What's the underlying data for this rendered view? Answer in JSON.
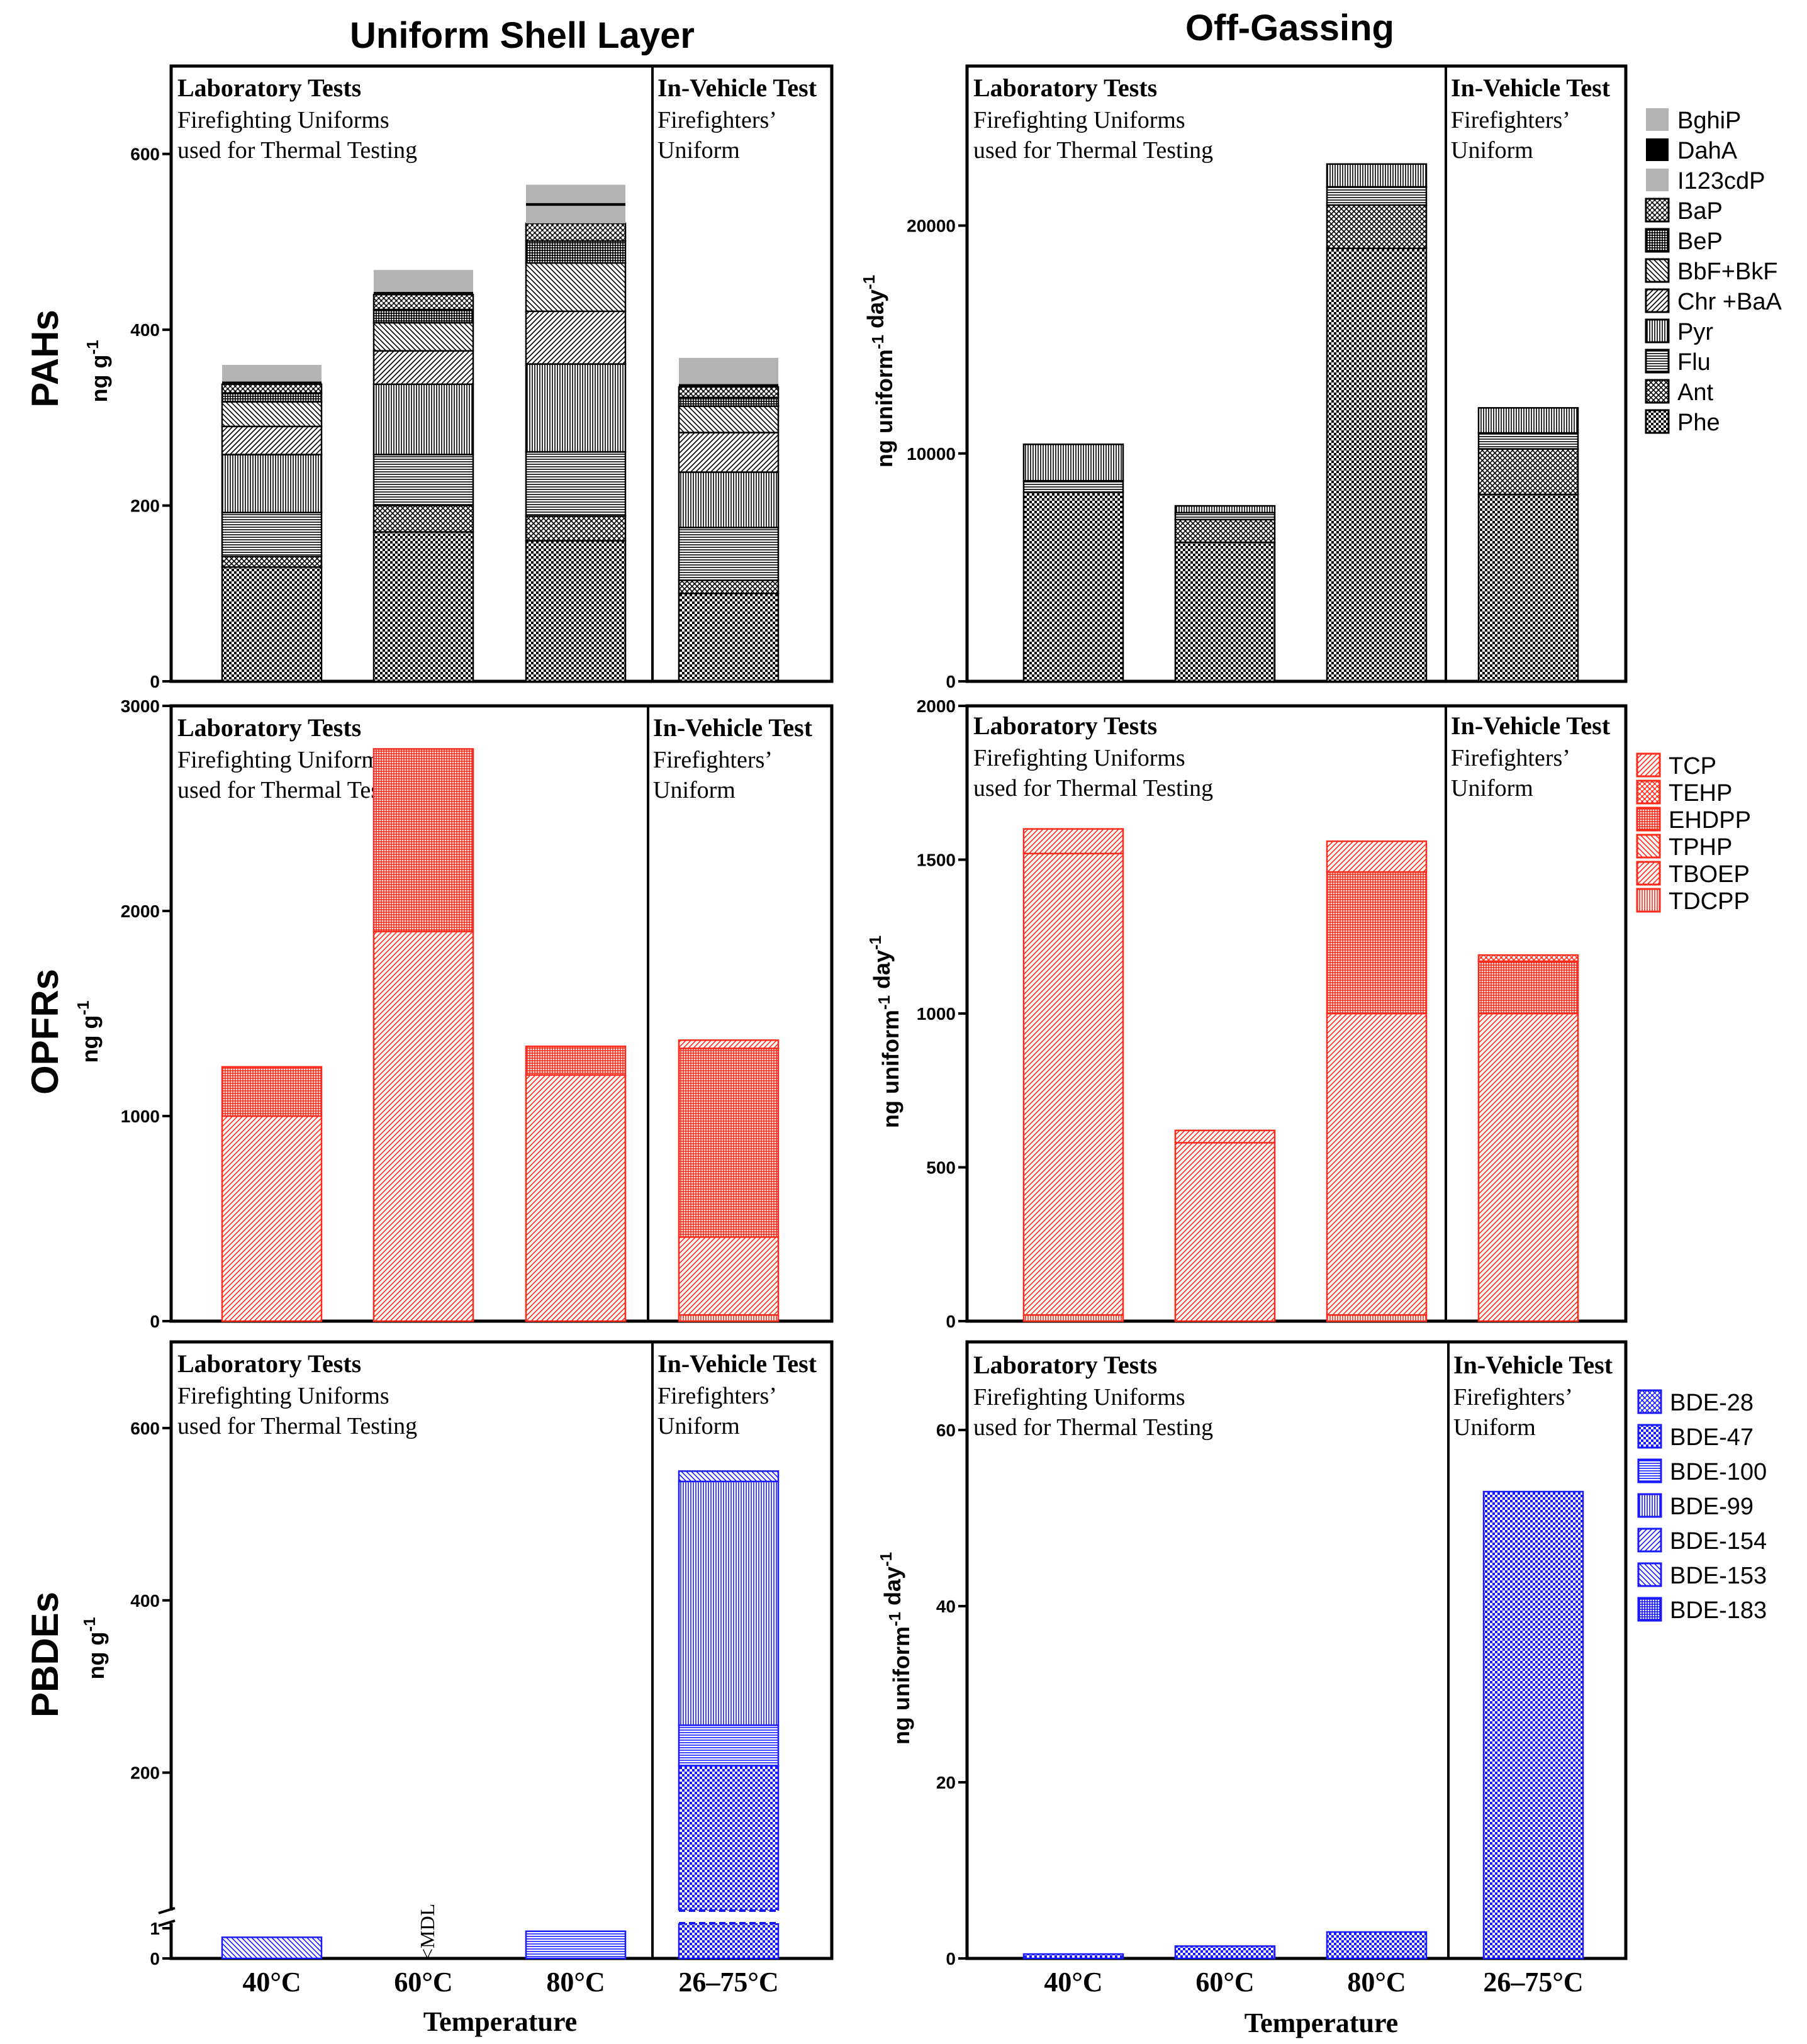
{
  "titles": {
    "left": "Uniform Shell Layer",
    "right": "Off-Gassing"
  },
  "row_labels": [
    "PAHs",
    "OPFRs",
    "PBDEs"
  ],
  "x_title": "Temperature",
  "panel_text": {
    "lab_title": "Laboratory Tests",
    "lab_line1": "Firefighting Uniforms",
    "lab_line2": "used for Thermal Testing",
    "veh_title": "In-Vehicle Test",
    "veh_line1": "Firefighters’",
    "veh_line2": "Uniform"
  },
  "mdl_label": "<MDL",
  "colors": {
    "pah": "#000000",
    "pah_gray": "#b3b3b3",
    "opfr": "#ff2a1a",
    "pbde": "#1a1aff"
  },
  "chart_data": [
    {
      "type": "bar",
      "title": "Uniform Shell Layer — PAHs",
      "ylabel": "ng g-1",
      "categories": [
        "40°C",
        "60°C",
        "80°C",
        "26–75°C"
      ],
      "ylim": [
        0,
        700
      ],
      "yticks": [
        0,
        200,
        400,
        600
      ],
      "series": [
        {
          "name": "Phe",
          "values": [
            130,
            170,
            160,
            100
          ]
        },
        {
          "name": "Ant",
          "values": [
            12,
            30,
            28,
            15
          ]
        },
        {
          "name": "Flu",
          "values": [
            50,
            58,
            73,
            60
          ]
        },
        {
          "name": "Pyr",
          "values": [
            66,
            80,
            100,
            63
          ]
        },
        {
          "name": "Chr +BaA",
          "values": [
            32,
            38,
            60,
            45
          ]
        },
        {
          "name": "BbF+BkF",
          "values": [
            28,
            32,
            55,
            30
          ]
        },
        {
          "name": "BeP",
          "values": [
            10,
            15,
            25,
            10
          ]
        },
        {
          "name": "BaP",
          "values": [
            10,
            17,
            20,
            12
          ]
        },
        {
          "name": "I123cdP",
          "values": [
            0,
            0,
            20,
            0
          ]
        },
        {
          "name": "DahA",
          "values": [
            2,
            2,
            2,
            2
          ]
        },
        {
          "name": "BghiP",
          "values": [
            20,
            26,
            22,
            31
          ]
        }
      ]
    },
    {
      "type": "bar",
      "title": "Off-Gassing — PAHs",
      "ylabel": "ng uniform-1 day-1",
      "categories": [
        "40°C",
        "60°C",
        "80°C",
        "26–75°C"
      ],
      "ylim": [
        0,
        27000
      ],
      "yticks": [
        0,
        10000,
        20000
      ],
      "series": [
        {
          "name": "Phe",
          "values": [
            8300,
            6100,
            19000,
            8200
          ]
        },
        {
          "name": "Ant",
          "values": [
            0,
            1000,
            1900,
            2000
          ]
        },
        {
          "name": "Flu",
          "values": [
            500,
            300,
            800,
            700
          ]
        },
        {
          "name": "Pyr",
          "values": [
            1600,
            300,
            1000,
            1100
          ]
        }
      ]
    },
    {
      "type": "bar",
      "title": "Uniform Shell Layer — OPFRs",
      "ylabel": "ng g-1",
      "categories": [
        "40°C",
        "60°C",
        "80°C",
        "26–75°C"
      ],
      "ylim": [
        0,
        3000
      ],
      "yticks": [
        0,
        1000,
        2000,
        3000
      ],
      "series": [
        {
          "name": "TDCPP",
          "values": [
            0,
            0,
            0,
            30
          ]
        },
        {
          "name": "TBOEP",
          "values": [
            1000,
            1900,
            1200,
            380
          ]
        },
        {
          "name": "TPHP",
          "values": [
            0,
            0,
            0,
            0
          ]
        },
        {
          "name": "EHDPP",
          "values": [
            240,
            890,
            140,
            920
          ]
        },
        {
          "name": "TEHP",
          "values": [
            0,
            0,
            0,
            0
          ]
        },
        {
          "name": "TCP",
          "values": [
            0,
            0,
            0,
            40
          ]
        }
      ]
    },
    {
      "type": "bar",
      "title": "Off-Gassing — OPFRs",
      "ylabel": "ng uniform-1 day-1",
      "categories": [
        "40°C",
        "60°C",
        "80°C",
        "26–75°C"
      ],
      "ylim": [
        0,
        2000
      ],
      "yticks": [
        0,
        500,
        1000,
        1500,
        2000
      ],
      "series": [
        {
          "name": "TDCPP",
          "values": [
            20,
            0,
            20,
            0
          ]
        },
        {
          "name": "TBOEP",
          "values": [
            1500,
            580,
            980,
            1000
          ]
        },
        {
          "name": "TPHP",
          "values": [
            0,
            0,
            0,
            0
          ]
        },
        {
          "name": "EHDPP",
          "values": [
            0,
            0,
            460,
            170
          ]
        },
        {
          "name": "TEHP",
          "values": [
            0,
            0,
            0,
            20
          ]
        },
        {
          "name": "TCP",
          "values": [
            80,
            40,
            100,
            0
          ]
        }
      ]
    },
    {
      "type": "bar",
      "title": "Uniform Shell Layer — PBDEs",
      "ylabel": "ng g-1",
      "categories": [
        "40°C",
        "60°C",
        "80°C",
        "26–75°C"
      ],
      "ylim": [
        0,
        700
      ],
      "yticks": [
        0,
        1,
        200,
        400,
        600
      ],
      "axis_break": [
        1,
        50
      ],
      "series": [
        {
          "name": "BDE-28",
          "values": [
            0,
            0,
            0,
            0
          ]
        },
        {
          "name": "BDE-47",
          "values": [
            0,
            0,
            0,
            208
          ]
        },
        {
          "name": "BDE-100",
          "values": [
            0,
            0,
            0.9,
            47
          ]
        },
        {
          "name": "BDE-99",
          "values": [
            0,
            0,
            0,
            283
          ]
        },
        {
          "name": "BDE-154",
          "values": [
            0,
            0,
            0,
            0
          ]
        },
        {
          "name": "BDE-153",
          "values": [
            0.7,
            0,
            0,
            12
          ]
        },
        {
          "name": "BDE-183",
          "values": [
            0,
            0,
            0,
            0
          ]
        }
      ]
    },
    {
      "type": "bar",
      "title": "Off-Gassing — PBDEs",
      "ylabel": "ng uniform-1 day-1",
      "categories": [
        "40°C",
        "60°C",
        "80°C",
        "26–75°C"
      ],
      "ylim": [
        0,
        70
      ],
      "yticks": [
        0,
        20,
        40,
        60
      ],
      "series": [
        {
          "name": "BDE-28",
          "values": [
            0,
            0,
            0,
            0
          ]
        },
        {
          "name": "BDE-47",
          "values": [
            0.5,
            1.4,
            3,
            53
          ]
        },
        {
          "name": "BDE-100",
          "values": [
            0,
            0,
            0,
            0
          ]
        },
        {
          "name": "BDE-99",
          "values": [
            0,
            0,
            0,
            0
          ]
        },
        {
          "name": "BDE-154",
          "values": [
            0,
            0,
            0,
            0
          ]
        },
        {
          "name": "BDE-153",
          "values": [
            0,
            0,
            0,
            0
          ]
        },
        {
          "name": "BDE-183",
          "values": [
            0,
            0,
            0,
            0
          ]
        }
      ]
    }
  ],
  "legends": {
    "pah": [
      "BghiP",
      "DahA",
      "I123cdP",
      "BaP",
      "BeP",
      "BbF+BkF",
      "Chr +BaA",
      "Pyr",
      "Flu",
      "Ant",
      "Phe"
    ],
    "opfr": [
      "TCP",
      "TEHP",
      "EHDPP",
      "TPHP",
      "TBOEP",
      "TDCPP"
    ],
    "pbde": [
      "BDE-28",
      "BDE-47",
      "BDE-100",
      "BDE-99",
      "BDE-154",
      "BDE-153",
      "BDE-183"
    ]
  }
}
